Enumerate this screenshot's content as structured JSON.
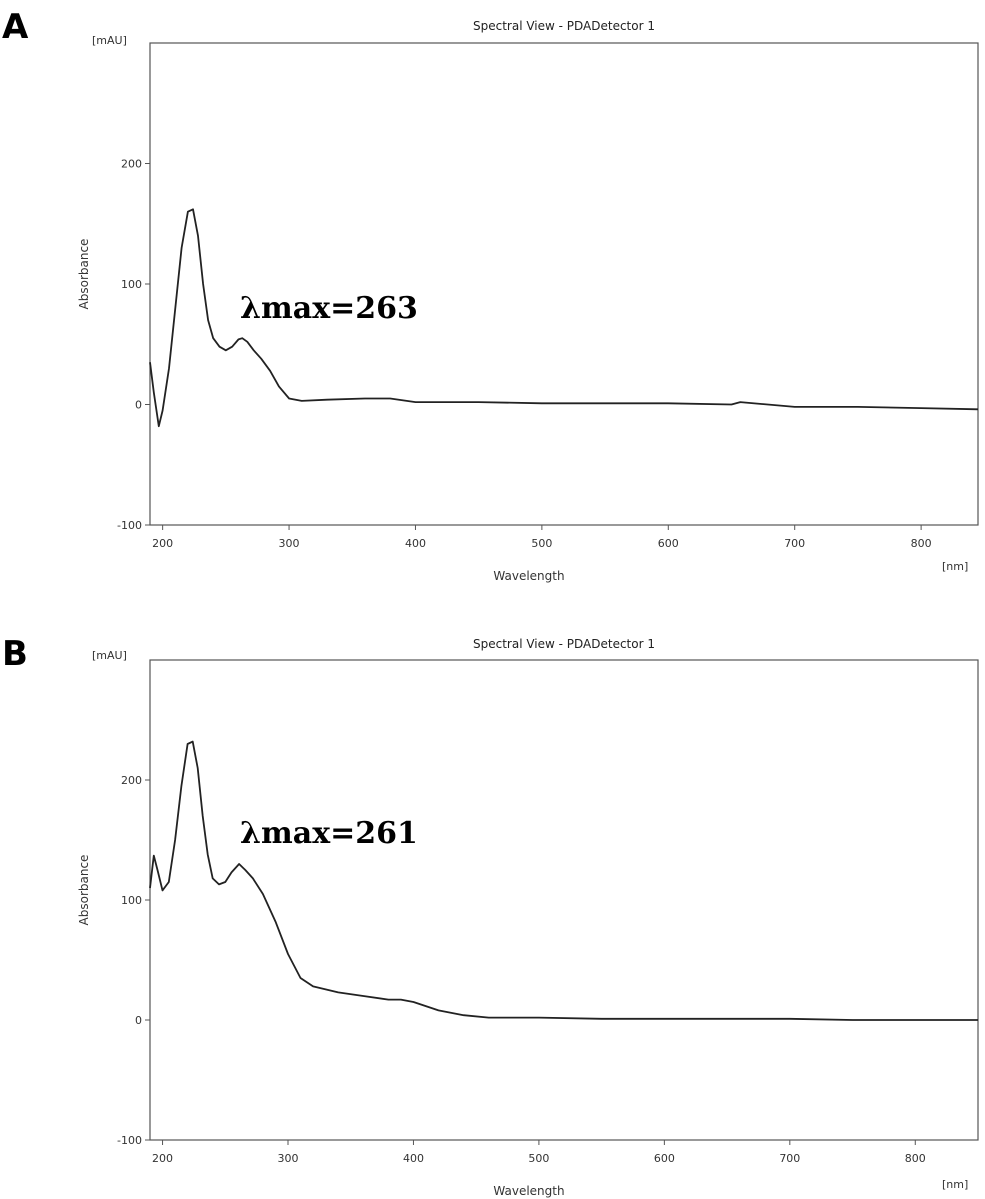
{
  "chart_data": [
    {
      "type": "line",
      "panel_label": "A",
      "title": "Spectral View - PDADetector 1",
      "xlabel": "Wavelength",
      "ylabel": "Absorbance",
      "x_unit": "[nm]",
      "y_unit": "[mAU]",
      "xlim": [
        190,
        845
      ],
      "ylim": [
        -100,
        300
      ],
      "x_ticks": [
        200,
        300,
        400,
        500,
        600,
        700,
        800
      ],
      "y_ticks": [
        -100,
        0,
        100,
        200
      ],
      "annotation": "λmax=263",
      "grid": false,
      "series": [
        {
          "x": [
            190,
            193,
            197,
            200,
            205,
            210,
            215,
            220,
            224,
            228,
            232,
            236,
            240,
            245,
            250,
            255,
            260,
            263,
            267,
            272,
            278,
            285,
            292,
            300,
            310,
            330,
            360,
            380,
            400,
            450,
            500,
            550,
            600,
            650,
            657,
            700,
            750,
            800,
            845
          ],
          "y": [
            35,
            10,
            -18,
            -5,
            30,
            80,
            130,
            160,
            162,
            140,
            100,
            70,
            55,
            48,
            45,
            48,
            54,
            55,
            52,
            45,
            38,
            28,
            15,
            5,
            3,
            4,
            5,
            5,
            2,
            2,
            1,
            1,
            1,
            0,
            2,
            -2,
            -2,
            -3,
            -4
          ]
        }
      ]
    },
    {
      "type": "line",
      "panel_label": "B",
      "title": "Spectral View - PDADetector 1",
      "xlabel": "Wavelength",
      "ylabel": "Absorbance",
      "x_unit": "[nm]",
      "y_unit": "[mAU]",
      "xlim": [
        190,
        850
      ],
      "ylim": [
        -100,
        300
      ],
      "x_ticks": [
        200,
        300,
        400,
        500,
        600,
        700,
        800
      ],
      "y_ticks": [
        -100,
        0,
        100,
        200
      ],
      "annotation": "λmax=261",
      "grid": false,
      "series": [
        {
          "x": [
            190,
            193,
            196,
            200,
            205,
            210,
            215,
            220,
            224,
            228,
            232,
            236,
            240,
            245,
            250,
            255,
            261,
            266,
            272,
            280,
            290,
            300,
            310,
            320,
            340,
            360,
            380,
            390,
            400,
            420,
            440,
            460,
            500,
            550,
            600,
            700,
            750,
            800,
            850
          ],
          "y": [
            110,
            137,
            125,
            108,
            115,
            150,
            195,
            230,
            232,
            210,
            170,
            138,
            118,
            113,
            115,
            123,
            130,
            125,
            118,
            105,
            82,
            55,
            35,
            28,
            23,
            20,
            17,
            17,
            15,
            8,
            4,
            2,
            2,
            1,
            1,
            1,
            0,
            0,
            0
          ]
        }
      ]
    }
  ]
}
